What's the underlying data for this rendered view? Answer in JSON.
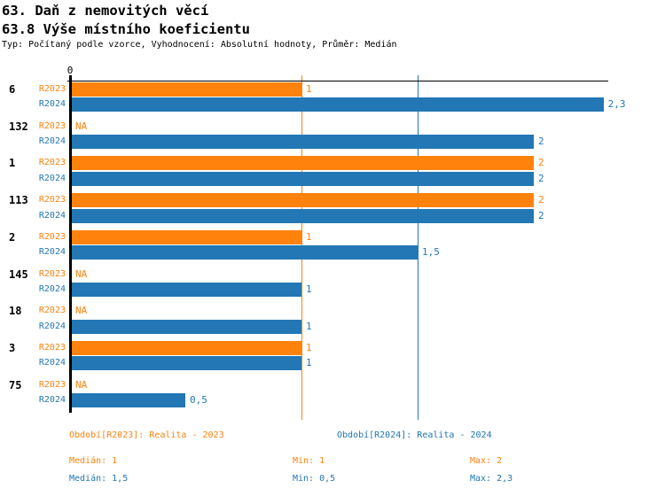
{
  "header": {
    "title": "63. Daň z nemovitých věcí",
    "subtitle": "63.8 Výše místního koeficientu",
    "meta": "Typ: Počítaný podle vzorce, Vyhodnocení: Absolutní hodnoty, Průměr: Medián"
  },
  "colors": {
    "r2023": "#FF820D",
    "r2024": "#2277B4",
    "axis": "#000000",
    "background": "#FFFFFF"
  },
  "chart_data": {
    "type": "bar",
    "orientation": "horizontal",
    "title": "63.8 Výše místního koeficientu",
    "xlabel": "",
    "ylabel": "",
    "xlim": [
      0,
      2.32
    ],
    "axis_zero_label": "0",
    "grid": "median reference lines only",
    "series_labels": {
      "r2023": "R2023",
      "r2024": "R2024"
    },
    "na_label": "NA",
    "reference_lines": [
      {
        "series": "R2023",
        "value": 1
      },
      {
        "series": "R2024",
        "value": 1.5
      }
    ],
    "rows": [
      {
        "category": "6",
        "r2023": 1,
        "r2023_label": "1",
        "r2024": 2.3,
        "r2024_label": "2,3"
      },
      {
        "category": "132",
        "r2023": null,
        "r2023_label": "NA",
        "r2024": 2,
        "r2024_label": "2"
      },
      {
        "category": "1",
        "r2023": 2,
        "r2023_label": "2",
        "r2024": 2,
        "r2024_label": "2"
      },
      {
        "category": "113",
        "r2023": 2,
        "r2023_label": "2",
        "r2024": 2,
        "r2024_label": "2"
      },
      {
        "category": "2",
        "r2023": 1,
        "r2023_label": "1",
        "r2024": 1.5,
        "r2024_label": "1,5"
      },
      {
        "category": "145",
        "r2023": null,
        "r2023_label": "NA",
        "r2024": 1,
        "r2024_label": "1"
      },
      {
        "category": "18",
        "r2023": null,
        "r2023_label": "NA",
        "r2024": 1,
        "r2024_label": "1"
      },
      {
        "category": "3",
        "r2023": 1,
        "r2023_label": "1",
        "r2024": 1,
        "r2024_label": "1"
      },
      {
        "category": "75",
        "r2023": null,
        "r2023_label": "NA",
        "r2024": 0.5,
        "r2024_label": "0,5"
      }
    ]
  },
  "legend": {
    "r2023": "Období[R2023]: Realita - 2023",
    "r2024": "Období[R2024]: Realita - 2024"
  },
  "stats": {
    "r2023": {
      "median": "Medián: 1",
      "min": "Min: 1",
      "max": "Max: 2"
    },
    "r2024": {
      "median": "Medián: 1,5",
      "min": "Min: 0,5",
      "max": "Max: 2,3"
    }
  }
}
